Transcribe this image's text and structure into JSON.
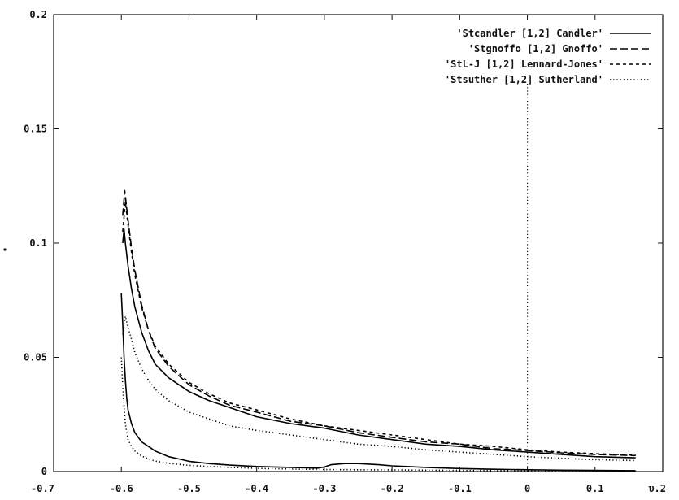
{
  "chart_data": {
    "type": "line",
    "title": "",
    "xlabel": "",
    "ylabel": "",
    "xlim": [
      -0.7,
      0.2
    ],
    "ylim": [
      0,
      0.2
    ],
    "x_ticks": [
      -0.7,
      -0.6,
      -0.5,
      -0.4,
      -0.3,
      -0.2,
      -0.1,
      0,
      0.1,
      0.2
    ],
    "x_tick_labels": [
      "-0.7",
      "-0.6",
      "-0.5",
      "-0.4",
      "-0.3",
      "-0.2",
      "-0.1",
      "0",
      "0.1",
      "υ.2"
    ],
    "y_ticks": [
      0,
      0.05,
      0.1,
      0.15,
      0.2
    ],
    "y_tick_labels": [
      "0",
      "0.05",
      "0.1",
      "0.15",
      "0.2"
    ],
    "grid": false,
    "legend_position": "top-right",
    "reference_line_x": 0,
    "series": [
      {
        "name": "'Stcandler [1,2] Candler'",
        "style": "solid",
        "color": "#000000",
        "x": [
          -0.598,
          -0.596,
          -0.594,
          -0.59,
          -0.585,
          -0.58,
          -0.57,
          -0.56,
          -0.55,
          -0.53,
          -0.5,
          -0.47,
          -0.44,
          -0.4,
          -0.35,
          -0.3,
          -0.25,
          -0.2,
          -0.15,
          -0.1,
          -0.05,
          0,
          0.05,
          0.1,
          0.16
        ],
        "y": [
          0.1,
          0.106,
          0.1,
          0.09,
          0.08,
          0.072,
          0.061,
          0.053,
          0.047,
          0.041,
          0.035,
          0.031,
          0.028,
          0.024,
          0.021,
          0.019,
          0.016,
          0.014,
          0.012,
          0.011,
          0.0095,
          0.0085,
          0.0075,
          0.0065,
          0.006
        ]
      },
      {
        "name": "'Stgnoffo [1,2] Gnoffo'",
        "style": "longdash",
        "color": "#000000",
        "x": [
          -0.598,
          -0.595,
          -0.59,
          -0.585,
          -0.58,
          -0.57,
          -0.56,
          -0.55,
          -0.53,
          -0.5,
          -0.47,
          -0.44,
          -0.4,
          -0.35,
          -0.3,
          -0.25,
          -0.2,
          -0.15,
          -0.1,
          -0.05,
          0,
          0.05,
          0.1,
          0.16
        ],
        "y": [
          0.112,
          0.123,
          0.11,
          0.098,
          0.088,
          0.073,
          0.062,
          0.054,
          0.046,
          0.038,
          0.033,
          0.029,
          0.026,
          0.022,
          0.02,
          0.017,
          0.015,
          0.013,
          0.012,
          0.01,
          0.0092,
          0.0082,
          0.0075,
          0.007
        ]
      },
      {
        "name": "'StL-J [1,2] Lennard-Jones'",
        "style": "shortdash",
        "color": "#000000",
        "x": [
          -0.598,
          -0.594,
          -0.59,
          -0.585,
          -0.58,
          -0.57,
          -0.56,
          -0.55,
          -0.53,
          -0.5,
          -0.47,
          -0.44,
          -0.4,
          -0.35,
          -0.3,
          -0.25,
          -0.2,
          -0.15,
          -0.1,
          -0.05,
          0,
          0.05,
          0.1,
          0.16
        ],
        "y": [
          0.105,
          0.118,
          0.108,
          0.096,
          0.086,
          0.072,
          0.062,
          0.055,
          0.047,
          0.039,
          0.034,
          0.03,
          0.027,
          0.023,
          0.02,
          0.018,
          0.016,
          0.014,
          0.012,
          0.011,
          0.0095,
          0.0085,
          0.0078,
          0.0072
        ]
      },
      {
        "name": "'Stsuther [1,2] Sutherland'",
        "style": "dotted",
        "color": "#000000",
        "x": [
          -0.598,
          -0.594,
          -0.59,
          -0.585,
          -0.58,
          -0.57,
          -0.56,
          -0.55,
          -0.53,
          -0.5,
          -0.47,
          -0.44,
          -0.4,
          -0.35,
          -0.3,
          -0.25,
          -0.2,
          -0.15,
          -0.1,
          -0.05,
          0,
          0.05,
          0.1,
          0.16
        ],
        "y": [
          0.06,
          0.068,
          0.063,
          0.058,
          0.052,
          0.045,
          0.04,
          0.036,
          0.031,
          0.026,
          0.023,
          0.02,
          0.018,
          0.016,
          0.014,
          0.012,
          0.011,
          0.0095,
          0.0085,
          0.0075,
          0.0065,
          0.0058,
          0.0052,
          0.0048
        ]
      },
      {
        "name": "",
        "style": "solid",
        "color": "#000000",
        "x": [
          -0.6,
          -0.598,
          -0.596,
          -0.594,
          -0.592,
          -0.59,
          -0.585,
          -0.58,
          -0.57,
          -0.56,
          -0.55,
          -0.53,
          -0.5,
          -0.47,
          -0.44,
          -0.4,
          -0.35,
          -0.31,
          -0.3,
          -0.29,
          -0.27,
          -0.25,
          -0.22,
          -0.2,
          -0.15,
          -0.1,
          -0.05,
          0,
          0.05,
          0.1,
          0.16
        ],
        "y": [
          0.078,
          0.065,
          0.05,
          0.04,
          0.032,
          0.027,
          0.021,
          0.017,
          0.013,
          0.011,
          0.009,
          0.0065,
          0.0045,
          0.0035,
          0.0028,
          0.0022,
          0.0018,
          0.0015,
          0.002,
          0.003,
          0.0035,
          0.0035,
          0.003,
          0.0025,
          0.0018,
          0.0013,
          0.001,
          0.0008,
          0.0006,
          0.0005,
          0.0004
        ]
      },
      {
        "name": "",
        "style": "dotted",
        "color": "#000000",
        "x": [
          -0.6,
          -0.598,
          -0.596,
          -0.594,
          -0.592,
          -0.59,
          -0.585,
          -0.58,
          -0.57,
          -0.56,
          -0.55,
          -0.53,
          -0.5,
          -0.47,
          -0.44,
          -0.4,
          -0.35,
          -0.3,
          -0.25,
          -0.2,
          -0.15,
          -0.1,
          -0.05,
          0,
          0.05,
          0.1,
          0.16
        ],
        "y": [
          0.05,
          0.038,
          0.028,
          0.021,
          0.017,
          0.014,
          0.011,
          0.009,
          0.0068,
          0.0055,
          0.0046,
          0.0036,
          0.0027,
          0.0022,
          0.0018,
          0.0014,
          0.0011,
          0.0009,
          0.0008,
          0.0007,
          0.0006,
          0.0005,
          0.00045,
          0.0004,
          0.00035,
          0.0003,
          0.0003
        ]
      }
    ]
  }
}
